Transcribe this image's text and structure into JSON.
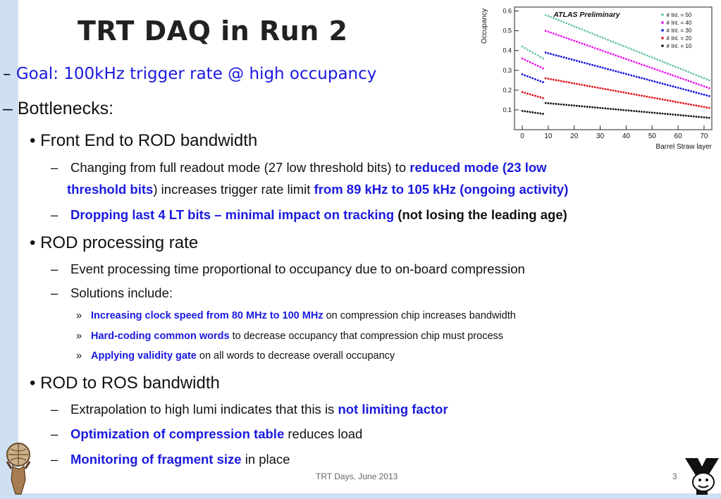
{
  "slide": {
    "title": "TRT DAQ in Run 2",
    "goal_dash": "–",
    "goal": "Goal: 100kHz trigger rate @ high occupancy",
    "bottlenecks_dash": "–",
    "bottlenecks": "Bottlenecks:",
    "sec1": {
      "bullet": "•",
      "heading": "Front End to ROD bandwidth",
      "item1": {
        "dash": "–",
        "p1": "Changing from full readout mode (27 low threshold bits) to ",
        "p2": "reduced mode (23 low",
        "p3": "threshold bits",
        "p4": ") increases trigger rate limit ",
        "p5": "from 89 kHz to 105 kHz (ongoing activity)"
      },
      "item2": {
        "dash": "–",
        "p1": "Dropping last 4 LT bits – minimal impact on tracking",
        "p2": " (not losing the leading age)"
      }
    },
    "sec2": {
      "bullet": "•",
      "heading": "ROD processing rate",
      "item1": {
        "dash": "–",
        "text": "Event processing time proportional to occupancy due to on-board compression"
      },
      "item2": {
        "dash": "–",
        "text": "Solutions include:"
      },
      "subs": [
        {
          "marker": "»",
          "emph": "Increasing clock speed from 80 MHz to 100 MHz",
          "rest": " on compression chip increases bandwidth"
        },
        {
          "marker": "»",
          "emph": "Hard-coding common words",
          "rest": " to decrease occupancy that compression chip must process"
        },
        {
          "marker": "»",
          "emph": "Applying validity gate",
          "rest": " on all words to decrease overall occupancy"
        }
      ]
    },
    "sec3": {
      "bullet": "•",
      "heading": "ROD to ROS bandwidth",
      "item1": {
        "dash": "–",
        "p1": "Extrapolation to high lumi indicates that this is ",
        "p2": "not limiting factor"
      },
      "item2": {
        "dash": "–",
        "p1": "Optimization of compression table",
        "p2": " reduces load"
      },
      "item3": {
        "dash": "–",
        "p1": "Monitoring of fragment size",
        "p2": " in place"
      }
    },
    "footer": {
      "text": "TRT Days, June 2013",
      "page": "3"
    }
  },
  "colors": {
    "blue_text": "#1a1adf",
    "sidebar": "#cfe0f2"
  },
  "chart_data": {
    "type": "scatter",
    "title": "ATLAS Preliminary",
    "xlabel": "Barrel Straw layer",
    "ylabel": "Occupancy",
    "xlim": [
      -3,
      73
    ],
    "ylim": [
      0,
      0.62
    ],
    "xticks": [
      0,
      10,
      20,
      30,
      40,
      50,
      60,
      70
    ],
    "yticks": [
      0.1,
      0.2,
      0.3,
      0.4,
      0.5,
      0.6
    ],
    "legend_position": "top-right",
    "series": [
      {
        "name": "# Int. = 50",
        "color": "#66c2a5",
        "segments": [
          {
            "x0": 0,
            "x1": 8,
            "y0": 0.42,
            "y1": 0.36
          },
          {
            "x0": 9,
            "x1": 72,
            "y0": 0.58,
            "y1": 0.25
          }
        ]
      },
      {
        "name": "# Int. = 40",
        "color": "#ee10ee",
        "segments": [
          {
            "x0": 0,
            "x1": 8,
            "y0": 0.36,
            "y1": 0.31
          },
          {
            "x0": 9,
            "x1": 72,
            "y0": 0.5,
            "y1": 0.21
          }
        ]
      },
      {
        "name": "# Int. = 30",
        "color": "#1010dd",
        "segments": [
          {
            "x0": 0,
            "x1": 8,
            "y0": 0.28,
            "y1": 0.24
          },
          {
            "x0": 9,
            "x1": 72,
            "y0": 0.39,
            "y1": 0.17
          }
        ]
      },
      {
        "name": "# Int. = 20",
        "color": "#e01010",
        "segments": [
          {
            "x0": 0,
            "x1": 8,
            "y0": 0.19,
            "y1": 0.16
          },
          {
            "x0": 9,
            "x1": 72,
            "y0": 0.26,
            "y1": 0.11
          }
        ]
      },
      {
        "name": "# Int. = 10",
        "color": "#111111",
        "segments": [
          {
            "x0": 0,
            "x1": 8,
            "y0": 0.095,
            "y1": 0.08
          },
          {
            "x0": 9,
            "x1": 72,
            "y0": 0.135,
            "y1": 0.06
          }
        ]
      }
    ]
  }
}
